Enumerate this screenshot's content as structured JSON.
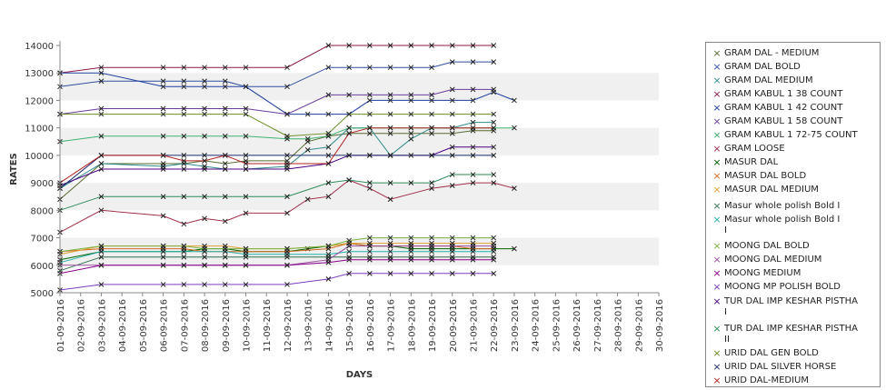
{
  "chart_data": {
    "type": "line",
    "xlabel": "DAYS",
    "ylabel": "RATES",
    "ylim": [
      5000,
      14000
    ],
    "y_ticks": [
      5000,
      6000,
      7000,
      8000,
      9000,
      10000,
      11000,
      12000,
      13000,
      14000
    ],
    "grid_bands": true,
    "legend_position": "right",
    "categories": [
      "01-09-2016",
      "02-09-2016",
      "03-09-2016",
      "04-09-2016",
      "05-09-2016",
      "06-09-2016",
      "07-09-2016",
      "08-09-2016",
      "09-09-2016",
      "10-09-2016",
      "11-09-2016",
      "12-09-2016",
      "13-09-2016",
      "14-09-2016",
      "15-09-2016",
      "16-09-2016",
      "17-09-2016",
      "18-09-2016",
      "19-09-2016",
      "20-09-2016",
      "21-09-2016",
      "22-09-2016",
      "23-09-2016",
      "24-09-2016",
      "25-09-2016",
      "26-09-2016",
      "27-09-2016",
      "28-09-2016",
      "29-09-2016",
      "30-09-2016"
    ],
    "series": [
      {
        "name": "GRAM DAL - MEDIUM",
        "color": "#556b2f",
        "values": [
          8400,
          null,
          9700,
          null,
          null,
          9700,
          9700,
          9800,
          9700,
          9800,
          null,
          9800,
          10500,
          10700,
          10800,
          10800,
          10800,
          10800,
          10800,
          10800,
          10900,
          10900,
          null,
          null,
          null,
          null,
          null,
          null,
          null,
          null
        ]
      },
      {
        "name": "GRAM DAL BOLD",
        "color": "#2f4f9f",
        "values": [
          12500,
          null,
          12700,
          null,
          null,
          12700,
          12700,
          12700,
          12700,
          12500,
          null,
          12500,
          null,
          13200,
          13200,
          13200,
          13200,
          13200,
          13200,
          13400,
          13400,
          13400,
          null,
          null,
          null,
          null,
          null,
          null,
          null,
          null
        ]
      },
      {
        "name": "GRAM DAL MEDIUM",
        "color": "#2e8b8b",
        "values": [
          8800,
          null,
          9700,
          null,
          null,
          9600,
          9700,
          9600,
          9500,
          9500,
          null,
          9600,
          10200,
          10300,
          11000,
          11000,
          10000,
          10600,
          11000,
          11000,
          11200,
          11200,
          null,
          null,
          null,
          null,
          null,
          null,
          null,
          null
        ]
      },
      {
        "name": "GRAM KABUL 1 38 COUNT",
        "color": "#8b1a4a",
        "values": [
          13000,
          null,
          13200,
          null,
          null,
          13200,
          13200,
          13200,
          13200,
          13200,
          null,
          13200,
          null,
          14000,
          14000,
          14000,
          14000,
          14000,
          14000,
          14000,
          14000,
          14000,
          null,
          null,
          null,
          null,
          null,
          null,
          null,
          null
        ]
      },
      {
        "name": "GRAM KABUL 1 42 COUNT",
        "color": "#1f3f9f",
        "values": [
          13000,
          null,
          13000,
          null,
          null,
          12500,
          12500,
          12500,
          12500,
          12500,
          null,
          11500,
          11500,
          11500,
          11500,
          12000,
          12000,
          12000,
          12000,
          12000,
          12000,
          12300,
          12000,
          null,
          null,
          null,
          null,
          null,
          null,
          null
        ]
      },
      {
        "name": "GRAM KABUL 1 58 COUNT",
        "color": "#6a3d9a",
        "values": [
          11500,
          null,
          11700,
          null,
          null,
          11700,
          11700,
          11700,
          11700,
          11700,
          null,
          11500,
          null,
          12200,
          12200,
          12200,
          12200,
          12200,
          12200,
          12400,
          12400,
          12400,
          null,
          null,
          null,
          null,
          null,
          null,
          null,
          null
        ]
      },
      {
        "name": "GRAM KABUL 1 72-75 COUNT",
        "color": "#3cb371",
        "values": [
          10500,
          null,
          10700,
          null,
          null,
          10700,
          10700,
          10700,
          10700,
          10700,
          null,
          10600,
          10600,
          10700,
          11000,
          11000,
          11000,
          11000,
          11000,
          11000,
          11000,
          11000,
          11000,
          null,
          null,
          null,
          null,
          null,
          null,
          null
        ]
      },
      {
        "name": "GRAM LOOSE",
        "color": "#a0304a",
        "values": [
          7200,
          null,
          8000,
          null,
          null,
          7800,
          7500,
          7700,
          7600,
          7900,
          null,
          7900,
          8400,
          8500,
          9100,
          8800,
          8400,
          null,
          8800,
          8900,
          9000,
          9000,
          8800,
          null,
          null,
          null,
          null,
          null,
          null,
          null
        ]
      },
      {
        "name": "MASUR DAL",
        "color": "#006400",
        "values": [
          6200,
          null,
          6500,
          null,
          null,
          6500,
          6500,
          6600,
          6600,
          6500,
          null,
          6500,
          6600,
          6700,
          6800,
          6700,
          6700,
          6600,
          6600,
          6600,
          6600,
          6600,
          6600,
          null,
          null,
          null,
          null,
          null,
          null,
          null
        ]
      },
      {
        "name": "MASUR DAL BOLD",
        "color": "#d2691e",
        "values": [
          6500,
          null,
          6600,
          null,
          null,
          6600,
          6600,
          6500,
          6500,
          6500,
          null,
          6500,
          null,
          6600,
          6800,
          6700,
          6700,
          6700,
          6700,
          6700,
          6600,
          6600,
          null,
          null,
          null,
          null,
          null,
          null,
          null,
          null
        ]
      },
      {
        "name": "MASUR DAL MEDIUM",
        "color": "#e0a030",
        "values": [
          6400,
          null,
          6700,
          null,
          null,
          6700,
          6700,
          6700,
          6700,
          6600,
          null,
          6600,
          null,
          6700,
          6800,
          6800,
          6800,
          6800,
          6800,
          6800,
          6800,
          6800,
          null,
          null,
          null,
          null,
          null,
          null,
          null,
          null
        ]
      },
      {
        "name": "Masur whole polish Bold I",
        "color": "#2f6f4f",
        "values": [
          5800,
          null,
          6300,
          null,
          null,
          6300,
          6300,
          6300,
          6300,
          6300,
          null,
          6300,
          null,
          6300,
          6300,
          6300,
          6300,
          6300,
          6300,
          6300,
          6300,
          6300,
          null,
          null,
          null,
          null,
          null,
          null,
          null,
          null
        ]
      },
      {
        "name": "Masur whole polish Bold I\nI",
        "color": "#20b2aa",
        "values": [
          6100,
          null,
          6500,
          null,
          null,
          6500,
          6500,
          6500,
          6500,
          6400,
          null,
          6400,
          null,
          6400,
          6500,
          6500,
          6500,
          6500,
          6500,
          6500,
          6500,
          6500,
          null,
          null,
          null,
          null,
          null,
          null,
          null,
          null
        ]
      },
      {
        "name": "MOONG DAL BOLD",
        "color": "#7cb342",
        "values": [
          6500,
          null,
          6700,
          null,
          null,
          6700,
          6700,
          6600,
          6600,
          6600,
          null,
          6600,
          null,
          6700,
          6900,
          7000,
          7000,
          7000,
          7000,
          7000,
          7000,
          7000,
          null,
          null,
          null,
          null,
          null,
          null,
          null,
          null
        ]
      },
      {
        "name": "MOONG DAL MEDIUM",
        "color": "#9b4f9f",
        "values": [
          6000,
          null,
          6000,
          null,
          null,
          6000,
          6000,
          6000,
          6000,
          6000,
          null,
          6000,
          null,
          6200,
          6700,
          6700,
          6700,
          6700,
          6700,
          6700,
          6700,
          6700,
          null,
          null,
          null,
          null,
          null,
          null,
          null,
          null
        ]
      },
      {
        "name": "MOONG MEDIUM",
        "color": "#8b008b",
        "values": [
          5700,
          null,
          6000,
          null,
          null,
          6000,
          6000,
          6000,
          6000,
          6000,
          null,
          6000,
          null,
          6100,
          6200,
          6200,
          6200,
          6200,
          6200,
          6200,
          6200,
          6200,
          null,
          null,
          null,
          null,
          null,
          null,
          null,
          null
        ]
      },
      {
        "name": "MOONG MP POLISH BOLD",
        "color": "#7b3fbf",
        "values": [
          5100,
          null,
          5300,
          null,
          null,
          5300,
          5300,
          5300,
          5300,
          5300,
          null,
          5300,
          null,
          5500,
          5700,
          5700,
          5700,
          5700,
          5700,
          5700,
          5700,
          5700,
          null,
          null,
          null,
          null,
          null,
          null,
          null,
          null
        ]
      },
      {
        "name": "TUR DAL IMP KESHAR PISTHA\n I",
        "color": "#4b0082",
        "values": [
          8900,
          null,
          9500,
          null,
          null,
          9500,
          9500,
          9500,
          9500,
          9500,
          null,
          9500,
          null,
          9700,
          10000,
          10000,
          10000,
          null,
          10000,
          10300,
          10300,
          10300,
          null,
          null,
          null,
          null,
          null,
          null,
          null,
          null
        ]
      },
      {
        "name": "TUR DAL IMP KESHAR PISTHA\n II",
        "color": "#2e8b57",
        "values": [
          8000,
          null,
          8500,
          null,
          null,
          8500,
          8500,
          8500,
          8500,
          8500,
          null,
          8500,
          null,
          9000,
          9100,
          9000,
          9000,
          9000,
          9000,
          9300,
          9300,
          9300,
          null,
          null,
          null,
          null,
          null,
          null,
          null,
          null
        ]
      },
      {
        "name": "URID DAL GEN BOLD",
        "color": "#6b8e23",
        "values": [
          11500,
          null,
          11500,
          null,
          null,
          11500,
          11500,
          11500,
          11500,
          11500,
          null,
          10700,
          null,
          10800,
          11500,
          11500,
          11500,
          11500,
          11500,
          11500,
          11500,
          11500,
          null,
          null,
          null,
          null,
          null,
          null,
          null,
          null
        ]
      },
      {
        "name": "URID DAL SILVER HORSE",
        "color": "#1a2a6c",
        "values": [
          8800,
          null,
          10000,
          null,
          null,
          10000,
          10000,
          10000,
          10000,
          10000,
          null,
          10000,
          null,
          10000,
          10000,
          10000,
          10000,
          10000,
          10000,
          10000,
          10000,
          10000,
          null,
          null,
          null,
          null,
          null,
          null,
          null,
          null
        ]
      },
      {
        "name": "URID DAL-MEDIUM",
        "color": "#b22222",
        "values": [
          9000,
          null,
          10000,
          null,
          null,
          10000,
          9800,
          9800,
          10000,
          9700,
          null,
          9700,
          null,
          9700,
          10800,
          11000,
          11000,
          11000,
          11000,
          11000,
          11000,
          11000,
          null,
          null,
          null,
          null,
          null,
          null,
          null,
          null
        ]
      }
    ]
  }
}
